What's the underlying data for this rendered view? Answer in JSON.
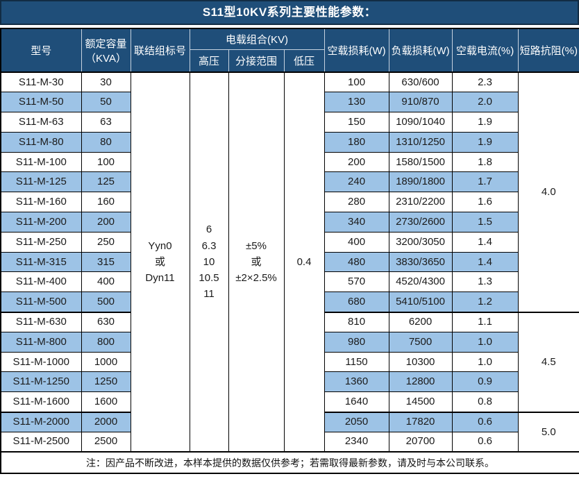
{
  "title": "S11型10KV系列主要性能参数：",
  "colors": {
    "header_bg": "#1F4E79",
    "stripe": "#9DC3E6",
    "border": "#000000",
    "header_line": "#c7d3e0"
  },
  "header": {
    "model": "型号",
    "capacity_line1": "额定容量",
    "capacity_line2": "（KVA）",
    "connection": "联结组标号",
    "voltage_group": "电载组合(KV)",
    "hv": "高压",
    "tap_range": "分接范围",
    "lv": "低压",
    "no_load_loss": "空载损耗(W)",
    "load_loss": "负载损耗(W)",
    "no_load_current": "空载电流(%)",
    "impedance": "短路抗阻(%)"
  },
  "merged": {
    "connection_lines": [
      "Yyn0",
      "或",
      "Dyn11"
    ],
    "hv_lines": [
      "6",
      "6.3",
      "10",
      "10.5",
      "11"
    ],
    "tap_lines": [
      "±5%",
      "或",
      "±2×2.5%"
    ],
    "lv": "0.4"
  },
  "impedance_groups": [
    {
      "value": "4.0",
      "rows": 12
    },
    {
      "value": "4.5",
      "rows": 5
    },
    {
      "value": "5.0",
      "rows": 2
    }
  ],
  "rows": [
    {
      "model": "S11-M-30",
      "capacity": "30",
      "no_load_loss": "100",
      "load_loss": "630/600",
      "no_load_current": "2.3"
    },
    {
      "model": "S11-M-50",
      "capacity": "50",
      "no_load_loss": "130",
      "load_loss": "910/870",
      "no_load_current": "2.0"
    },
    {
      "model": "S11-M-63",
      "capacity": "63",
      "no_load_loss": "150",
      "load_loss": "1090/1040",
      "no_load_current": "1.9"
    },
    {
      "model": "S11-M-80",
      "capacity": "80",
      "no_load_loss": "180",
      "load_loss": "1310/1250",
      "no_load_current": "1.9"
    },
    {
      "model": "S11-M-100",
      "capacity": "100",
      "no_load_loss": "200",
      "load_loss": "1580/1500",
      "no_load_current": "1.8"
    },
    {
      "model": "S11-M-125",
      "capacity": "125",
      "no_load_loss": "240",
      "load_loss": "1890/1800",
      "no_load_current": "1.7"
    },
    {
      "model": "S11-M-160",
      "capacity": "160",
      "no_load_loss": "280",
      "load_loss": "2310/2200",
      "no_load_current": "1.6"
    },
    {
      "model": "S11-M-200",
      "capacity": "200",
      "no_load_loss": "340",
      "load_loss": "2730/2600",
      "no_load_current": "1.5"
    },
    {
      "model": "S11-M-250",
      "capacity": "250",
      "no_load_loss": "400",
      "load_loss": "3200/3050",
      "no_load_current": "1.4"
    },
    {
      "model": "S11-M-315",
      "capacity": "315",
      "no_load_loss": "480",
      "load_loss": "3830/3650",
      "no_load_current": "1.4"
    },
    {
      "model": "S11-M-400",
      "capacity": "400",
      "no_load_loss": "570",
      "load_loss": "4520/4300",
      "no_load_current": "1.3"
    },
    {
      "model": "S11-M-500",
      "capacity": "500",
      "no_load_loss": "680",
      "load_loss": "5410/5100",
      "no_load_current": "1.2"
    },
    {
      "model": "S11-M-630",
      "capacity": "630",
      "no_load_loss": "810",
      "load_loss": "6200",
      "no_load_current": "1.1"
    },
    {
      "model": "S11-M-800",
      "capacity": "800",
      "no_load_loss": "980",
      "load_loss": "7500",
      "no_load_current": "1.0"
    },
    {
      "model": "S11-M-1000",
      "capacity": "1000",
      "no_load_loss": "1150",
      "load_loss": "10300",
      "no_load_current": "1.0"
    },
    {
      "model": "S11-M-1250",
      "capacity": "1250",
      "no_load_loss": "1360",
      "load_loss": "12800",
      "no_load_current": "0.9"
    },
    {
      "model": "S11-M-1600",
      "capacity": "1600",
      "no_load_loss": "1640",
      "load_loss": "14500",
      "no_load_current": "0.8"
    },
    {
      "model": "S11-M-2000",
      "capacity": "2000",
      "no_load_loss": "2050",
      "load_loss": "17820",
      "no_load_current": "0.6"
    },
    {
      "model": "S11-M-2500",
      "capacity": "2500",
      "no_load_loss": "2340",
      "load_loss": "20700",
      "no_load_current": "0.6"
    }
  ],
  "note": "注：因产品不断改进，本样本提供的数据仅供参考；若需取得最新参数，请及时与本公司联系。"
}
